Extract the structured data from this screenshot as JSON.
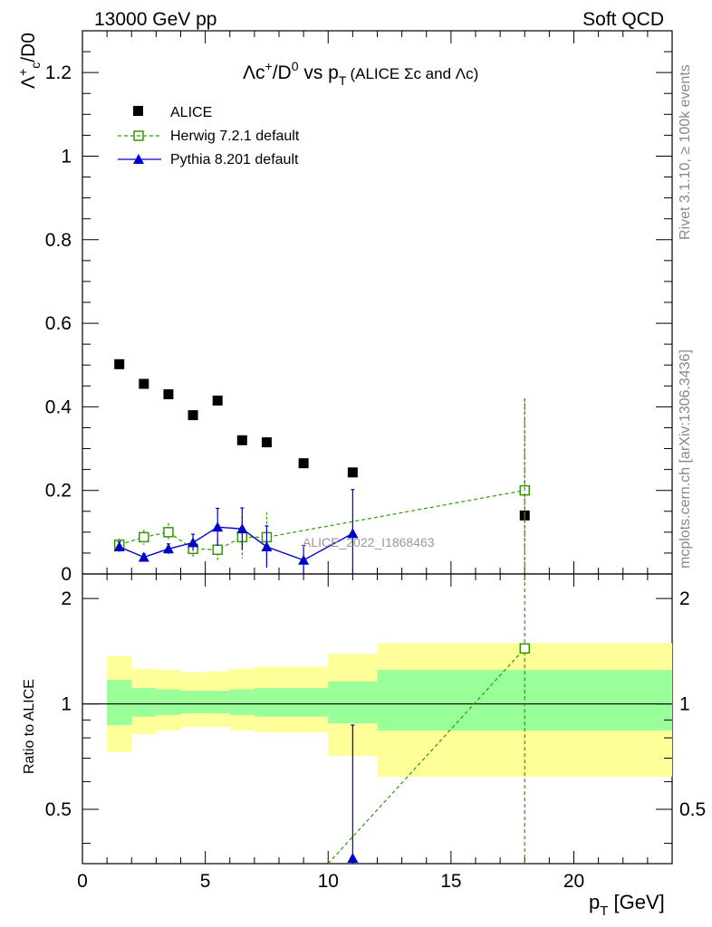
{
  "header": {
    "left": "13000 GeV pp",
    "right": "Soft QCD"
  },
  "plot_title": {
    "main": "Λc⁺/D⁰ vs p",
    "sub": "T",
    "paren": "(ALICE Σc and Λc)"
  },
  "side_labels": {
    "top": "Rivet 3.1.10, ≥ 100k events",
    "bottom": "mcplots.cern.ch [arXiv:1306.3436]"
  },
  "analysis_tag": "ALICE_2022_I1868463",
  "colors": {
    "data": "#000000",
    "herwig": "#339900",
    "pythia": "#0000cc",
    "band_inner": "#99ff99",
    "band_outer": "#ffff99"
  },
  "chart_data": [
    {
      "type": "scatter",
      "panel": "main",
      "ylabel": "Λc⁺/D0",
      "xlim": [
        0,
        24
      ],
      "ylim": [
        0,
        1.3
      ],
      "yticks": [
        "0",
        "0.2",
        "0.4",
        "0.6",
        "0.8",
        "1",
        "1.2"
      ],
      "legend_position": "top-left",
      "series": [
        {
          "name": "ALICE",
          "x": [
            1.5,
            2.5,
            3.5,
            4.5,
            5.5,
            6.5,
            7.5,
            9,
            11,
            18
          ],
          "y": [
            0.502,
            0.455,
            0.43,
            0.38,
            0.415,
            0.32,
            0.315,
            0.265,
            0.243,
            0.14
          ]
        },
        {
          "name": "Herwig 7.2.1 default",
          "x": [
            1.5,
            2.5,
            3.5,
            4.5,
            5.5,
            6.5,
            7.5,
            18
          ],
          "y": [
            0.07,
            0.088,
            0.1,
            0.06,
            0.058,
            0.088,
            0.088,
            0.2
          ],
          "err": [
            0.015,
            0.018,
            0.022,
            0.02,
            0.025,
            0.05,
            0.06,
            0.22
          ]
        },
        {
          "name": "Pythia 8.201 default",
          "x": [
            1.5,
            2.5,
            3.5,
            4.5,
            5.5,
            6.5,
            7.5,
            9,
            11
          ],
          "y": [
            0.065,
            0.04,
            0.06,
            0.075,
            0.112,
            0.108,
            0.065,
            0.033,
            0.097
          ],
          "err": [
            0.012,
            0.008,
            0.012,
            0.02,
            0.045,
            0.05,
            0.05,
            0.035,
            0.105
          ]
        }
      ]
    },
    {
      "type": "line",
      "panel": "ratio",
      "xlabel": "p_T [GeV]",
      "ylabel": "Ratio to ALICE",
      "xlim": [
        0,
        24
      ],
      "ylim": [
        0.35,
        2.35
      ],
      "scale": "log",
      "xticks": [
        "0",
        "5",
        "10",
        "15",
        "20"
      ],
      "yticks": [
        "0.5",
        "1",
        "2"
      ],
      "bands": [
        {
          "x0": 1,
          "x1": 2,
          "inner": [
            0.87,
            1.17
          ],
          "outer": [
            0.73,
            1.37
          ]
        },
        {
          "x0": 2,
          "x1": 3,
          "inner": [
            0.92,
            1.11
          ],
          "outer": [
            0.82,
            1.26
          ]
        },
        {
          "x0": 3,
          "x1": 4,
          "inner": [
            0.93,
            1.1
          ],
          "outer": [
            0.84,
            1.25
          ]
        },
        {
          "x0": 4,
          "x1": 5,
          "inner": [
            0.94,
            1.09
          ],
          "outer": [
            0.86,
            1.23
          ]
        },
        {
          "x0": 5,
          "x1": 6,
          "inner": [
            0.94,
            1.09
          ],
          "outer": [
            0.86,
            1.24
          ]
        },
        {
          "x0": 6,
          "x1": 7,
          "inner": [
            0.93,
            1.1
          ],
          "outer": [
            0.84,
            1.26
          ]
        },
        {
          "x0": 7,
          "x1": 10,
          "inner": [
            0.92,
            1.11
          ],
          "outer": [
            0.83,
            1.28
          ]
        },
        {
          "x0": 10,
          "x1": 12,
          "inner": [
            0.88,
            1.16
          ],
          "outer": [
            0.71,
            1.39
          ]
        },
        {
          "x0": 12,
          "x1": 24,
          "inner": [
            0.84,
            1.25
          ],
          "outer": [
            0.62,
            1.49
          ]
        }
      ],
      "series": [
        {
          "name": "Herwig 7.2.1 default",
          "x": [
            10,
            18
          ],
          "y": [
            0.35,
            1.44
          ]
        },
        {
          "name": "Pythia 8.201 default",
          "x": [
            11
          ],
          "y": [
            0.35
          ],
          "err_high": [
            0.87
          ]
        }
      ]
    }
  ]
}
